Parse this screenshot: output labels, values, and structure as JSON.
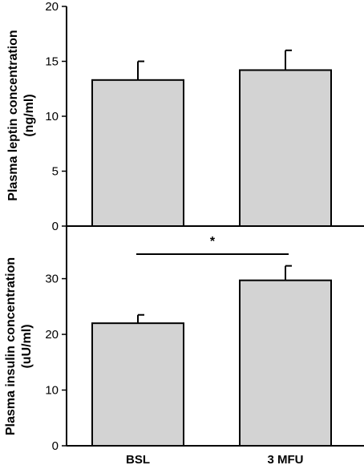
{
  "chart_data": [
    {
      "type": "bar",
      "categories": [
        "BSL",
        "3 MFU"
      ],
      "values": [
        13.3,
        14.2
      ],
      "error_upper": [
        1.7,
        1.8
      ],
      "ylabel_line1": "Plasma leptin concentration",
      "ylabel_line2": "(ng/ml)",
      "ylim": [
        0,
        20
      ],
      "yticks": [
        0,
        5,
        10,
        15,
        20
      ],
      "colors": {
        "bar_fill": "#d3d3d3",
        "bar_stroke": "#000000"
      }
    },
    {
      "type": "bar",
      "categories": [
        "BSL",
        "3 MFU"
      ],
      "values": [
        22.0,
        29.7
      ],
      "error_upper": [
        1.5,
        2.6
      ],
      "ylabel_line1": "Plasma insulin concentration",
      "ylabel_line2": "(uU/ml)",
      "ylim": [
        0,
        38
      ],
      "yticks": [
        0,
        10,
        20,
        30
      ],
      "significance": "*",
      "colors": {
        "bar_fill": "#d3d3d3",
        "bar_stroke": "#000000"
      }
    }
  ],
  "x_tick_labels": [
    "BSL",
    "3 MFU"
  ]
}
